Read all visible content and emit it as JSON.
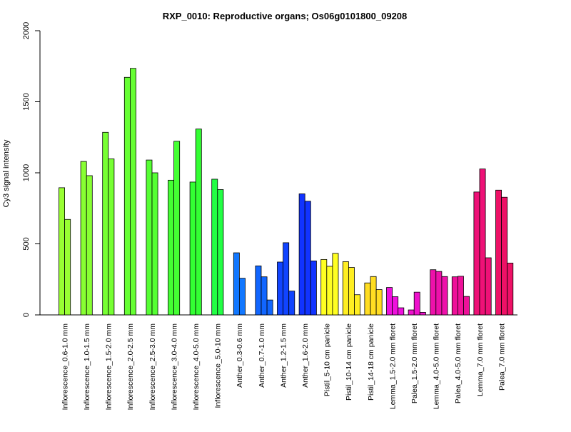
{
  "chart_data": {
    "type": "bar",
    "title": "RXP_0010: Reproductive organs; Os06g0101800_09208",
    "ylabel": "Cy3 signal intensity",
    "xlabel": "",
    "ylim": [
      0,
      2000
    ],
    "yticks": [
      0,
      500,
      1000,
      1500,
      2000
    ],
    "grid": false,
    "groups": [
      {
        "label": "Inflorescence_0.6-1.0 mm",
        "color": "#99ff33",
        "values": [
          895,
          672
        ]
      },
      {
        "label": "Inflorescence_1.0-1.5 mm",
        "color": "#88ff33",
        "values": [
          1080,
          980
        ]
      },
      {
        "label": "Inflorescence_1.5-2.0 mm",
        "color": "#77ff33",
        "values": [
          1285,
          1098
        ]
      },
      {
        "label": "Inflorescence_2.0-2.5 mm",
        "color": "#66ff33",
        "values": [
          1672,
          1735
        ]
      },
      {
        "label": "Inflorescence_2.5-3.0 mm",
        "color": "#55ff33",
        "values": [
          1090,
          1000
        ]
      },
      {
        "label": "Inflorescence_3.0-4.0 mm",
        "color": "#44ff33",
        "values": [
          948,
          1222
        ]
      },
      {
        "label": "Inflorescence_4.0-5.0 mm",
        "color": "#33ff33",
        "values": [
          935,
          1308
        ]
      },
      {
        "label": "Inflorescence_5.0-10 mm",
        "color": "#22ff44",
        "values": [
          955,
          882
        ]
      },
      {
        "label": "Anther_0.3-0.6 mm",
        "color": "#1177ff",
        "values": [
          437,
          258
        ]
      },
      {
        "label": "Anther_0.7-1.0 mm",
        "color": "#1166ff",
        "values": [
          345,
          268,
          105
        ]
      },
      {
        "label": "Anther_1.2-1.5 mm",
        "color": "#1144ff",
        "values": [
          372,
          508,
          168
        ]
      },
      {
        "label": "Anther_1.6-2.0 mm",
        "color": "#1133ff",
        "values": [
          852,
          800,
          380
        ]
      },
      {
        "label": "Pistil_5-10 cm panicle",
        "color": "#ffff22",
        "values": [
          390,
          342,
          433
        ]
      },
      {
        "label": "Pistil_10-14 cm panicle",
        "color": "#ffee22",
        "values": [
          375,
          334,
          142
        ]
      },
      {
        "label": "Pistil_14-18 cm panicle",
        "color": "#ffdd22",
        "values": [
          225,
          270,
          178
        ]
      },
      {
        "label": "Lemma_1.5-2.0 mm floret",
        "color": "#ee11dd",
        "values": [
          193,
          128,
          50
        ]
      },
      {
        "label": "Palea_1.5-2.0 mm floret",
        "color": "#ee11cc",
        "values": [
          35,
          160,
          18
        ]
      },
      {
        "label": "Lemma_4.0-5.0 mm floret",
        "color": "#ee11aa",
        "values": [
          318,
          306,
          270
        ]
      },
      {
        "label": "Palea_4.0-5.0 mm floret",
        "color": "#ee1199",
        "values": [
          268,
          272,
          130
        ]
      },
      {
        "label": "Lemma_7.0 mm floret",
        "color": "#ee1177",
        "values": [
          865,
          1027,
          402
        ]
      },
      {
        "label": "Palea_7.0 mm floret",
        "color": "#ee1166",
        "values": [
          878,
          828,
          365
        ]
      }
    ]
  }
}
